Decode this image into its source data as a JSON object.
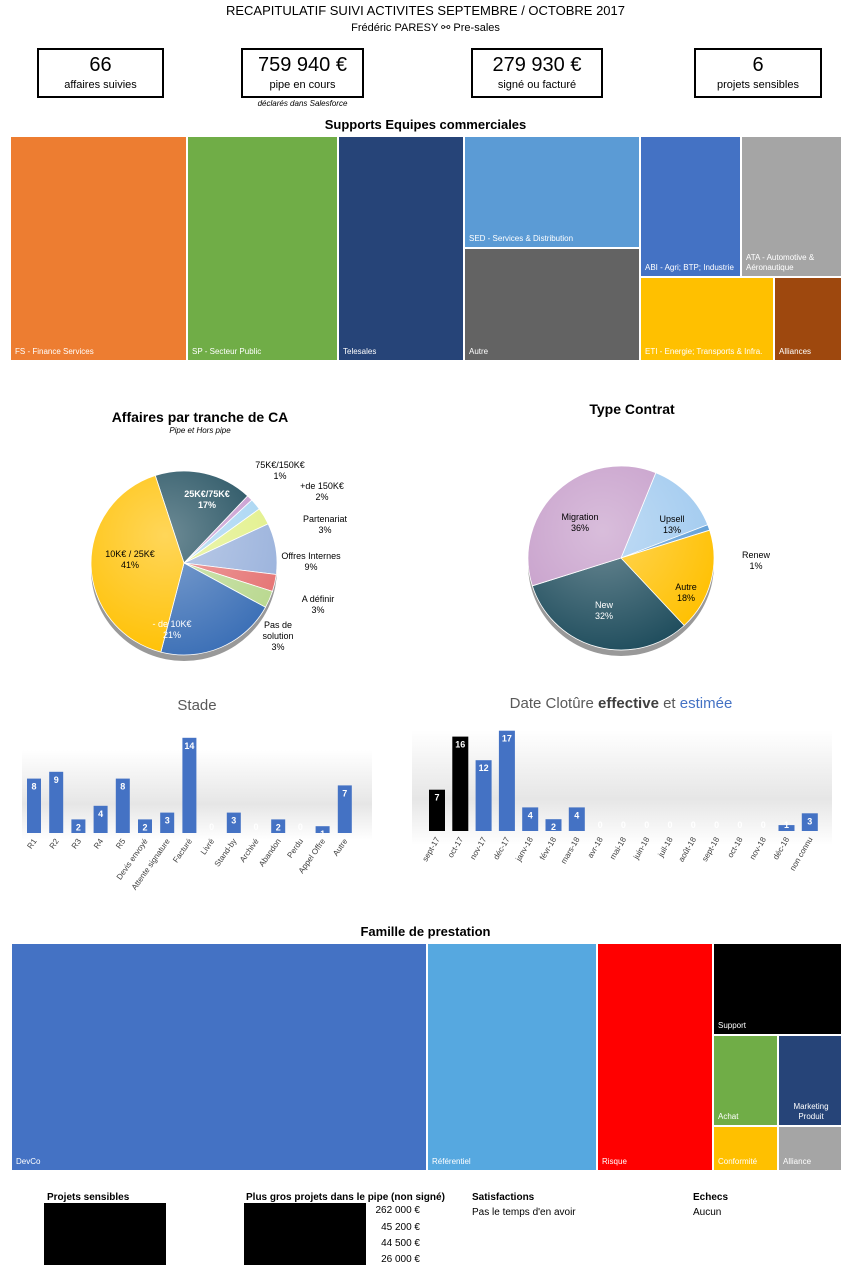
{
  "header": {
    "title": "RECAPITULATIF SUIVI ACTIVITES SEPTEMBRE / OCTOBRE 2017",
    "subtitle": "Frédéric PARESY ⚯ Pre-sales"
  },
  "kpis": [
    {
      "value": "66",
      "label": "affaires suivies"
    },
    {
      "value": "759 940 €",
      "label": "pipe en cours",
      "note": "déclarés dans Salesforce"
    },
    {
      "value": "279 930 €",
      "label": "signé ou facturé"
    },
    {
      "value": "6",
      "label": "projets sensibles"
    }
  ],
  "support_treemap": {
    "title": "Supports Equipes commerciales",
    "cells": [
      {
        "label": "FS - Finance Services",
        "color": "#ed7d31"
      },
      {
        "label": "SP - Secteur Public",
        "color": "#70ad47"
      },
      {
        "label": "Telesales",
        "color": "#264478"
      },
      {
        "label": "SED - Services & Distribution",
        "color": "#5b9bd5"
      },
      {
        "label": "Autre",
        "color": "#636363"
      },
      {
        "label": "ABI - Agri; BTP; Industrie",
        "color": "#4472c4"
      },
      {
        "label": "ATA - Automotive & Aéronautique",
        "color": "#a5a5a5"
      },
      {
        "label": "ETI - Energie; Transports & Infra.",
        "color": "#ffc000"
      },
      {
        "label": "Alliances",
        "color": "#9e480e"
      }
    ]
  },
  "famille_treemap": {
    "title": "Famille de prestation",
    "cells": [
      {
        "label": "DevCo",
        "color": "#4472c4"
      },
      {
        "label": "Référentiel",
        "color": "#56a8e0"
      },
      {
        "label": "Risque",
        "color": "#ff0000"
      },
      {
        "label": "Support",
        "color": "#000000"
      },
      {
        "label": "Achat",
        "color": "#70ad47"
      },
      {
        "label": "Marketing Produit",
        "color": "#264478"
      },
      {
        "label": "Conformité",
        "color": "#ffc000"
      },
      {
        "label": "Alliance",
        "color": "#a5a5a5"
      }
    ]
  },
  "chart_data": [
    {
      "type": "pie",
      "title": "Affaires par tranche de CA",
      "subtitle": "Pipe et Hors pipe",
      "slices": [
        {
          "label": "25K€/75K€",
          "value": 17,
          "pct": "17%",
          "color": "#1e4c5c"
        },
        {
          "label": "75K€/150K€",
          "value": 1,
          "pct": "1%",
          "color": "#c79bd0"
        },
        {
          "label": "+de 150K€",
          "value": 2,
          "pct": "2%",
          "color": "#a8d5f2"
        },
        {
          "label": "Partenariat",
          "value": 3,
          "pct": "3%",
          "color": "#e2f08a"
        },
        {
          "label": "Offres Internes",
          "value": 9,
          "pct": "9%",
          "color": "#9ab2dc"
        },
        {
          "label": "A définir",
          "value": 3,
          "pct": "3%",
          "color": "#e57373"
        },
        {
          "label": "Pas de solution",
          "value": 3,
          "pct": "3%",
          "color": "#b9d88f"
        },
        {
          "label": "- de 10K€",
          "value": 21,
          "pct": "21%",
          "color": "#3b6fb6"
        },
        {
          "label": "10K€ / 25K€",
          "value": 41,
          "pct": "41%",
          "color": "#ffc000"
        }
      ]
    },
    {
      "type": "pie",
      "title": "Type Contrat",
      "slices": [
        {
          "label": "Upsell",
          "value": 13,
          "pct": "13%",
          "color": "#9fc9ef"
        },
        {
          "label": "Renew",
          "value": 1,
          "pct": "1%",
          "color": "#5b9bd5"
        },
        {
          "label": "Autre",
          "value": 18,
          "pct": "18%",
          "color": "#ffc000"
        },
        {
          "label": "New",
          "value": 32,
          "pct": "32%",
          "color": "#1e4c5c"
        },
        {
          "label": "Migration",
          "value": 36,
          "pct": "36%",
          "color": "#c49ac8"
        }
      ]
    },
    {
      "type": "bar",
      "title": "Stade",
      "categories": [
        "R1",
        "R2",
        "R3",
        "R4",
        "R5",
        "Devis envoyé",
        "Attente signature",
        "Facturé",
        "Livré",
        "Stand-by",
        "Archivé",
        "Abandon",
        "Perdu",
        "Appel Offre",
        "Autre"
      ],
      "values": [
        8,
        9,
        2,
        4,
        8,
        2,
        3,
        14,
        0,
        3,
        0,
        2,
        0,
        1,
        7
      ],
      "color": "#4472c4"
    },
    {
      "type": "bar",
      "title": "Date Clotûre effective et estimée",
      "title_parts": {
        "a": "Date Clotûre ",
        "b": "effective",
        "c": " et ",
        "d": "estimée"
      },
      "categories": [
        "sept-17",
        "oct-17",
        "nov-17",
        "déc-17",
        "janv-18",
        "févr-18",
        "mars-18",
        "avr-18",
        "mai-18",
        "juin-18",
        "juil-18",
        "août-18",
        "sept-18",
        "oct-18",
        "nov-18",
        "déc-18",
        "non connu"
      ],
      "series": [
        {
          "name": "effective",
          "values": [
            7,
            16,
            0,
            0,
            0,
            0,
            0,
            0,
            0,
            0,
            0,
            0,
            0,
            0,
            0,
            0,
            0
          ],
          "color": "#000000"
        },
        {
          "name": "estimée",
          "values": [
            0,
            0,
            12,
            17,
            4,
            2,
            4,
            0,
            0,
            0,
            0,
            0,
            0,
            0,
            0,
            1,
            3
          ],
          "color": "#4472c4"
        }
      ],
      "labels": [
        7,
        16,
        12,
        17,
        4,
        2,
        4,
        0,
        0,
        0,
        0,
        0,
        0,
        0,
        0,
        1,
        3
      ]
    }
  ],
  "bottom": {
    "projets_sensibles": {
      "title": "Projets sensibles"
    },
    "gros_projets": {
      "title": "Plus gros projets dans le pipe (non signé)",
      "values": [
        "262 000 €",
        "45 200 €",
        "44 500 €",
        "26 000 €"
      ]
    },
    "satisfactions": {
      "title": "Satisfactions",
      "text": "Pas le temps d'en avoir"
    },
    "echecs": {
      "title": "Echecs",
      "text": "Aucun"
    }
  }
}
